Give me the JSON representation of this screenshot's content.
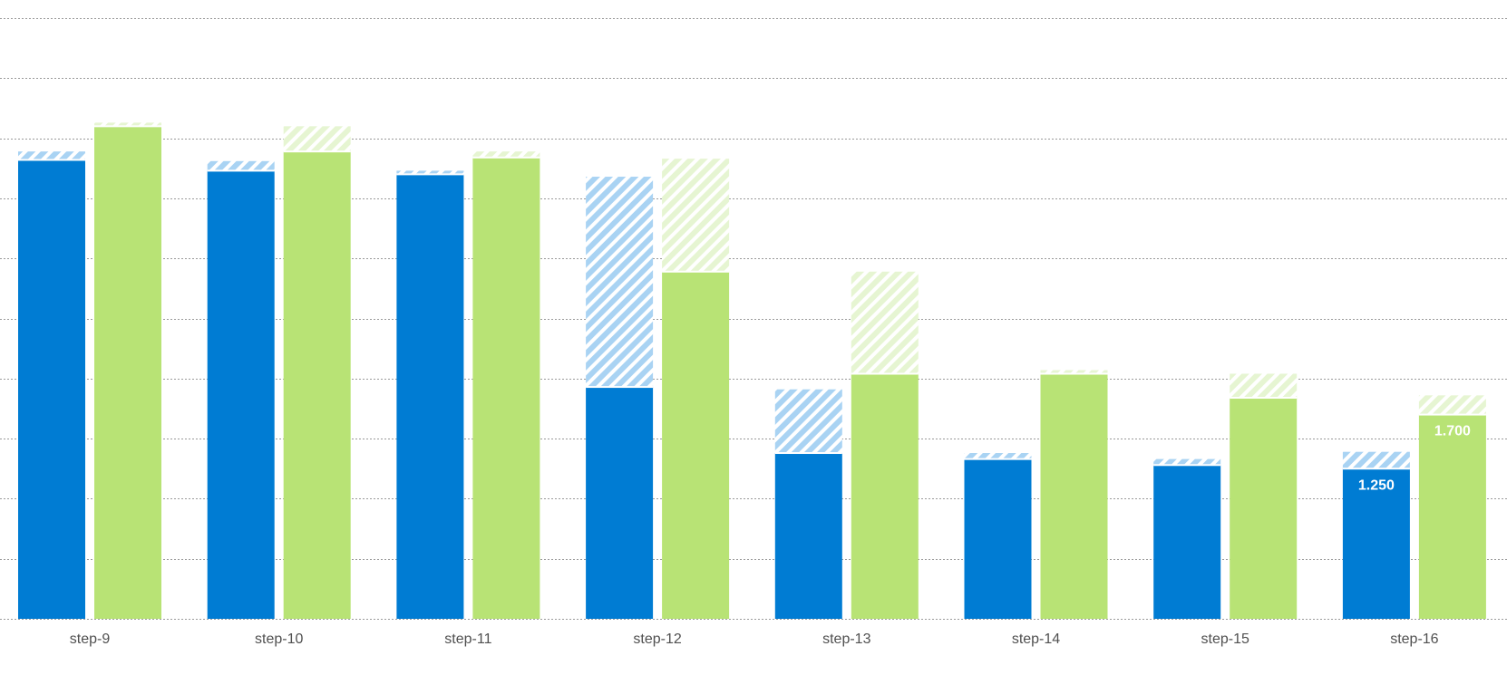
{
  "chart_data": {
    "type": "bar",
    "stacked_segments": true,
    "categories": [
      "step-9",
      "step-10",
      "step-11",
      "step-12",
      "step-13",
      "step-14",
      "step-15",
      "step-16"
    ],
    "series": [
      {
        "color": "#007cd3",
        "hatch_color": "#a9d3f3",
        "values": [
          3.82,
          3.73,
          3.7,
          1.93,
          1.38,
          1.33,
          1.28,
          1.25
        ],
        "hatched_extra": [
          0.07,
          0.08,
          0.03,
          1.75,
          0.53,
          0.05,
          0.05,
          0.14
        ]
      },
      {
        "color": "#b8e375",
        "hatch_color": "#e6f5d2",
        "values": [
          4.1,
          3.89,
          3.84,
          2.89,
          2.04,
          2.04,
          1.84,
          1.7
        ],
        "hatched_extra": [
          0.03,
          0.21,
          0.05,
          0.94,
          0.85,
          0.03,
          0.2,
          0.16
        ]
      }
    ],
    "data_labels": [
      {
        "series": 0,
        "category": "step-16",
        "text": "1.250"
      },
      {
        "series": 1,
        "category": "step-16",
        "text": "1.700"
      }
    ],
    "xlabel": "",
    "ylabel": "",
    "ylim": [
      0,
      5
    ],
    "grid": true,
    "grid_style": "dotted",
    "grid_step": 0.5,
    "y_tick_labels_visible": false,
    "legend": "none"
  }
}
